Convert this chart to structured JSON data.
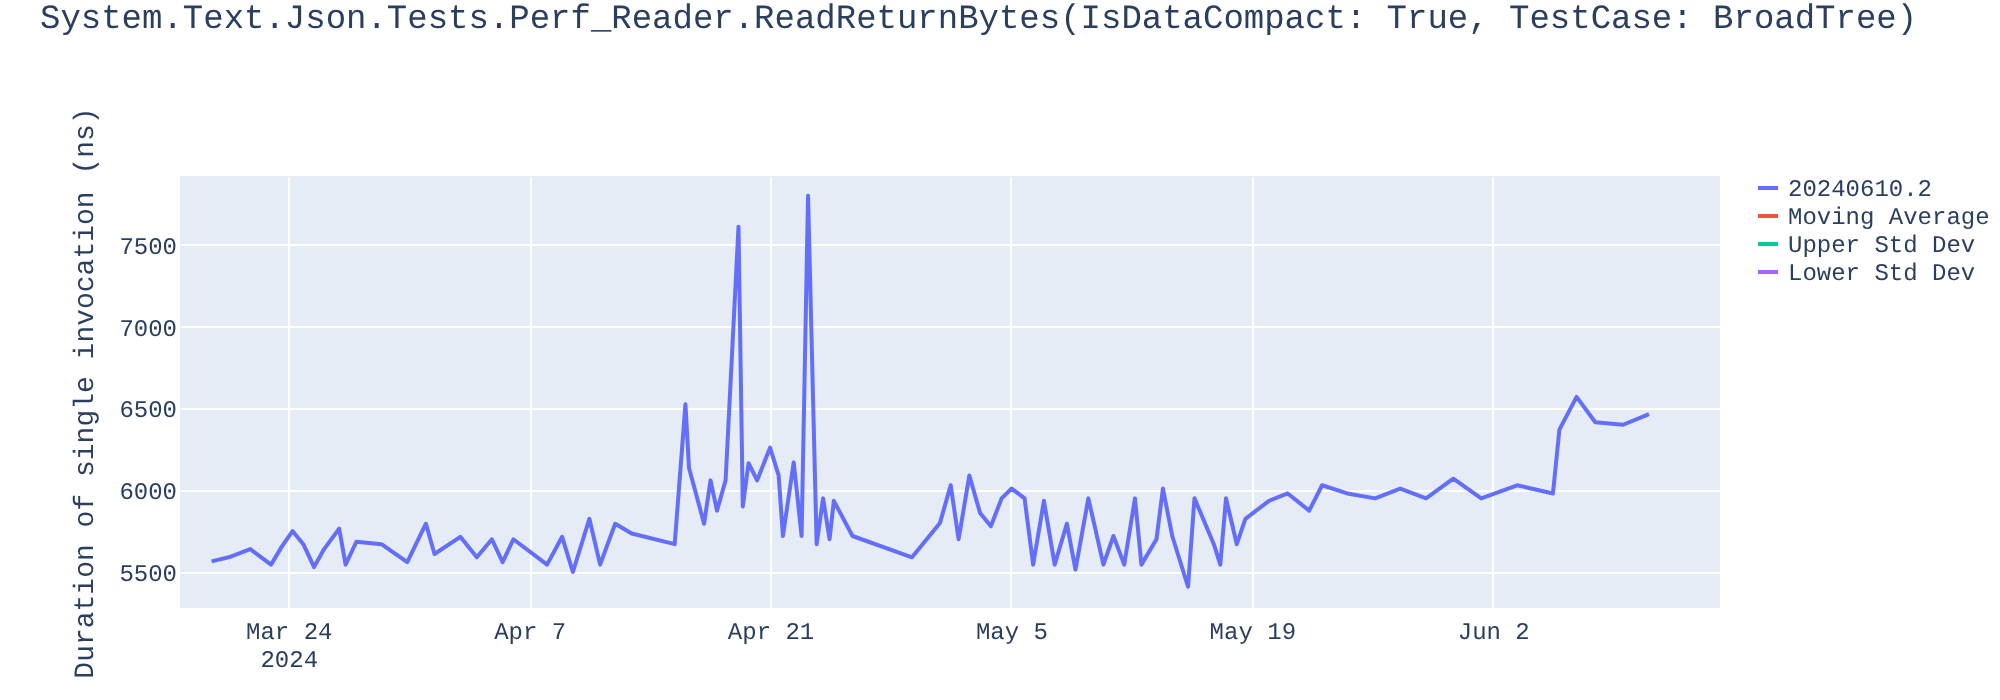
{
  "chart_data": {
    "type": "line",
    "title": "System.Text.Json.Tests.Perf_Reader.ReadReturnBytes(IsDataCompact: True, TestCase: BroadTree)",
    "ylabel": "Duration of single invocation (ns)",
    "x": [
      "2024-03-19T13:00",
      "2024-03-20T13:00",
      "2024-03-21T19:00",
      "2024-03-23T00:00",
      "2024-03-23T15:00",
      "2024-03-24T06:00",
      "2024-03-24T21:00",
      "2024-03-25T12:00",
      "2024-03-26T02:00",
      "2024-03-26T23:00",
      "2024-03-27T08:00",
      "2024-03-27T23:00",
      "2024-03-29T10:00",
      "2024-03-30T22:00",
      "2024-04-01T00:00",
      "2024-04-01T12:00",
      "2024-04-03T00:00",
      "2024-04-03T23:00",
      "2024-04-04T20:00",
      "2024-04-05T11:00",
      "2024-04-06T02:00",
      "2024-04-08T01:00",
      "2024-04-08T22:00",
      "2024-04-09T13:00",
      "2024-04-10T12:00",
      "2024-04-11T03:00",
      "2024-04-12T00:00",
      "2024-04-12T23:00",
      "2024-04-15T11:00",
      "2024-04-16T02:00",
      "2024-04-16T07:00",
      "2024-04-17T04:00",
      "2024-04-17T13:00",
      "2024-04-17T22:00",
      "2024-04-18T10:00",
      "2024-04-19T04:00",
      "2024-04-19T10:00",
      "2024-04-19T18:00",
      "2024-04-20T06:00",
      "2024-04-21T00:00",
      "2024-04-21T12:00",
      "2024-04-21T18:00",
      "2024-04-22T09:00",
      "2024-04-22T20:00",
      "2024-04-23T05:00",
      "2024-04-23T17:00",
      "2024-04-24T02:00",
      "2024-04-24T11:00",
      "2024-04-24T17:00",
      "2024-04-25T19:00",
      "2024-04-29T06:00",
      "2024-04-30T21:00",
      "2024-05-01T12:00",
      "2024-05-01T23:00",
      "2024-05-02T14:00",
      "2024-05-03T05:00",
      "2024-05-03T20:00",
      "2024-05-04T11:00",
      "2024-05-05T01:00",
      "2024-05-05T19:00",
      "2024-05-06T07:00",
      "2024-05-06T22:00",
      "2024-05-07T13:00",
      "2024-05-08T06:00",
      "2024-05-08T18:00",
      "2024-05-09T12:00",
      "2024-05-10T09:00",
      "2024-05-10T23:00",
      "2024-05-11T14:00",
      "2024-05-12T05:00",
      "2024-05-12T14:00",
      "2024-05-13T11:00",
      "2024-05-13T20:00",
      "2024-05-14T09:00",
      "2024-05-15T07:00",
      "2024-05-15T16:00",
      "2024-05-16T19:00",
      "2024-05-17T04:00",
      "2024-05-17T12:00",
      "2024-05-18T03:00",
      "2024-05-18T15:00",
      "2024-05-20T00:00",
      "2024-05-21T02:00",
      "2024-05-22T08:00",
      "2024-05-23T02:00",
      "2024-05-24T13:00",
      "2024-05-26T04:00",
      "2024-05-27T15:00",
      "2024-05-29T03:00",
      "2024-05-30T17:00",
      "2024-06-01T08:00",
      "2024-06-03T10:00",
      "2024-06-05T12:00",
      "2024-06-05T21:00",
      "2024-06-06T21:00",
      "2024-06-07T23:00",
      "2024-06-09T14:00",
      "2024-06-11T02:00"
    ],
    "series": [
      {
        "name": "20240610.2",
        "color": "#636efa",
        "values": [
          5565,
          5590,
          5640,
          5545,
          5655,
          5750,
          5670,
          5530,
          5640,
          5765,
          5545,
          5685,
          5670,
          5560,
          5795,
          5610,
          5715,
          5590,
          5700,
          5560,
          5700,
          5545,
          5715,
          5500,
          5825,
          5545,
          5795,
          5735,
          5670,
          6525,
          6135,
          5795,
          6060,
          5875,
          6060,
          7610,
          5900,
          6165,
          6060,
          6260,
          6090,
          5720,
          6170,
          5720,
          7800,
          5670,
          5950,
          5700,
          5935,
          5720,
          5590,
          5800,
          6030,
          5700,
          6090,
          5860,
          5780,
          5950,
          6010,
          5950,
          5545,
          5935,
          5545,
          5795,
          5515,
          5950,
          5545,
          5720,
          5545,
          5950,
          5545,
          5700,
          6010,
          5720,
          5410,
          5950,
          5670,
          5545,
          5950,
          5670,
          5825,
          5935,
          5980,
          5875,
          6030,
          5980,
          5950,
          6010,
          5950,
          6070,
          5950,
          6030,
          5980,
          6370,
          6570,
          6415,
          6400,
          6465
        ]
      },
      {
        "name": "Moving Average",
        "color": "#ef553b",
        "values": [
          null,
          null,
          null,
          null,
          null,
          null,
          null,
          null,
          null,
          null,
          null,
          null,
          null,
          null,
          null,
          null,
          null,
          null,
          null,
          null,
          null,
          null,
          null,
          null,
          null,
          null,
          null,
          null,
          null,
          null,
          null,
          null,
          null,
          null,
          null,
          null,
          null,
          null,
          null,
          null,
          null,
          null,
          null,
          null,
          null,
          null,
          null,
          null,
          null,
          null,
          null,
          null,
          null,
          null,
          null,
          null,
          null,
          null,
          null,
          null,
          null,
          null,
          null,
          null,
          null,
          null,
          null,
          null,
          null,
          null,
          null,
          null,
          null,
          null,
          null,
          null,
          null,
          null,
          null,
          null,
          null,
          null,
          null,
          null,
          null,
          null,
          null,
          null,
          null,
          null,
          null,
          null,
          null,
          null,
          null,
          null,
          null,
          null
        ]
      },
      {
        "name": "Upper Std Dev",
        "color": "#00cc96",
        "values": [
          null,
          null,
          null,
          null,
          null,
          null,
          null,
          null,
          null,
          null,
          null,
          null,
          null,
          null,
          null,
          null,
          null,
          null,
          null,
          null,
          null,
          null,
          null,
          null,
          null,
          null,
          null,
          null,
          null,
          null,
          null,
          null,
          null,
          null,
          null,
          null,
          null,
          null,
          null,
          null,
          null,
          null,
          null,
          null,
          null,
          null,
          null,
          null,
          null,
          null,
          null,
          null,
          null,
          null,
          null,
          null,
          null,
          null,
          null,
          null,
          null,
          null,
          null,
          null,
          null,
          null,
          null,
          null,
          null,
          null,
          null,
          null,
          null,
          null,
          null,
          null,
          null,
          null,
          null,
          null,
          null,
          null,
          null,
          null,
          null,
          null,
          null,
          null,
          null,
          null,
          null,
          null,
          null,
          null,
          null,
          null,
          null,
          null
        ]
      },
      {
        "name": "Lower Std Dev",
        "color": "#ab63fa",
        "values": [
          null,
          null,
          null,
          null,
          null,
          null,
          null,
          null,
          null,
          null,
          null,
          null,
          null,
          null,
          null,
          null,
          null,
          null,
          null,
          null,
          null,
          null,
          null,
          null,
          null,
          null,
          null,
          null,
          null,
          null,
          null,
          null,
          null,
          null,
          null,
          null,
          null,
          null,
          null,
          null,
          null,
          null,
          null,
          null,
          null,
          null,
          null,
          null,
          null,
          null,
          null,
          null,
          null,
          null,
          null,
          null,
          null,
          null,
          null,
          null,
          null,
          null,
          null,
          null,
          null,
          null,
          null,
          null,
          null,
          null,
          null,
          null,
          null,
          null,
          null,
          null,
          null,
          null,
          null,
          null,
          null,
          null,
          null,
          null,
          null,
          null,
          null,
          null,
          null,
          null,
          null,
          null,
          null,
          null,
          null,
          null,
          null,
          null
        ]
      }
    ],
    "xlim": [
      "2024-03-17T17:00",
      "2024-06-15T05:00"
    ],
    "xticks": [
      {
        "value": "2024-03-24",
        "label": "Mar 24\n2024"
      },
      {
        "value": "2024-04-07",
        "label": "Apr 7"
      },
      {
        "value": "2024-04-21",
        "label": "Apr 21"
      },
      {
        "value": "2024-05-05",
        "label": "May 5"
      },
      {
        "value": "2024-05-19",
        "label": "May 19"
      },
      {
        "value": "2024-06-02",
        "label": "Jun 2"
      }
    ],
    "ylim": [
      5280,
      7920
    ],
    "yticks": [
      5500,
      6000,
      6500,
      7000,
      7500
    ],
    "grid": true,
    "legend": "right",
    "line_style": "solid",
    "marker": "none"
  }
}
